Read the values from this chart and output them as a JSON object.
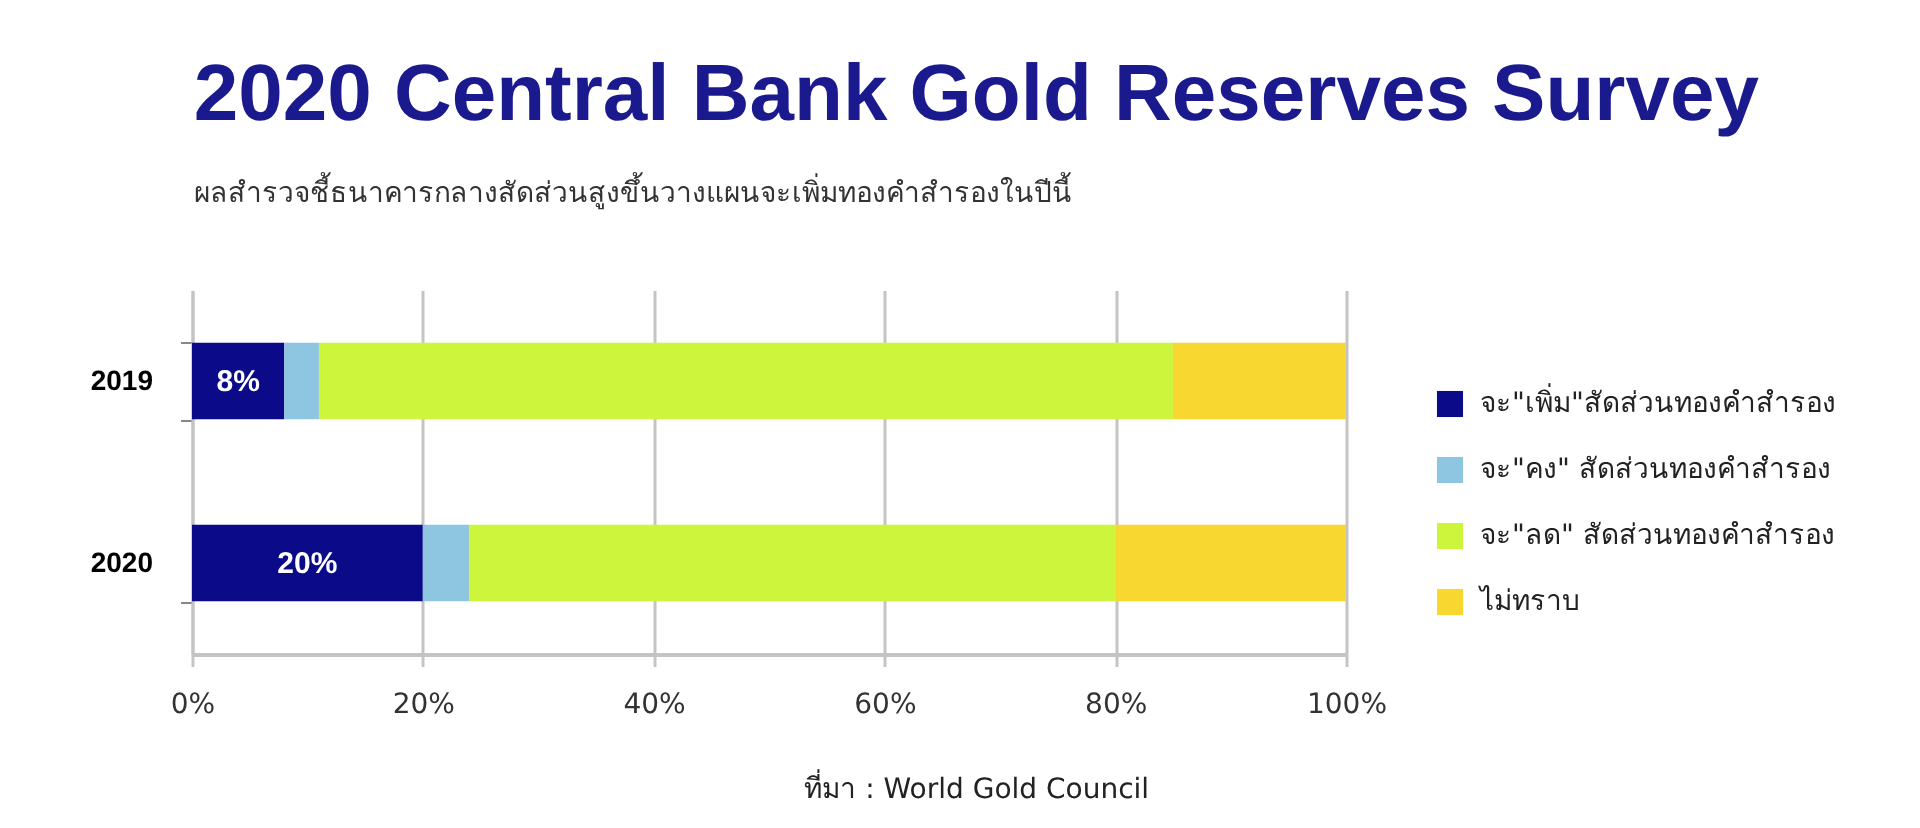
{
  "chart_data": {
    "type": "bar",
    "orientation": "horizontal",
    "stacked": true,
    "title": "2020 Central Bank Gold Reserves Survey",
    "subtitle": "ผลสำรวจชี้ธนาคารกลางสัดส่วนสูงขึ้นวางแผนจะเพิ่มทองคำสำรองในปีนี้",
    "annotations": [
      "ที่มา : World Gold Council"
    ],
    "categories": [
      "2019",
      "2020"
    ],
    "series": [
      {
        "name": "จะ\"เพิ่ม\"สัดส่วนทองคำสำรอง",
        "color": "#0b0b8a",
        "values": [
          8,
          20
        ],
        "value_labels": [
          "8%",
          "20%"
        ]
      },
      {
        "name": "จะ\"คง\" สัดส่วนทองคำสำรอง",
        "color": "#8ec5e0",
        "values": [
          3,
          4
        ]
      },
      {
        "name": "จะ\"ลด\" สัดส่วนทองคำสำรอง",
        "color": "#ccf53c",
        "values": [
          74,
          56
        ]
      },
      {
        "name": "ไม่ทราบ",
        "color": "#f8d830",
        "values": [
          15,
          20
        ]
      }
    ],
    "xlim": [
      0,
      100
    ],
    "xticks": [
      {
        "value": 0,
        "label": "0%"
      },
      {
        "value": 20,
        "label": "20%"
      },
      {
        "value": 40,
        "label": "40%"
      },
      {
        "value": 60,
        "label": "60%"
      },
      {
        "value": 80,
        "label": "80%"
      },
      {
        "value": 100,
        "label": "100%"
      }
    ],
    "grid": "x",
    "legend": "right"
  }
}
